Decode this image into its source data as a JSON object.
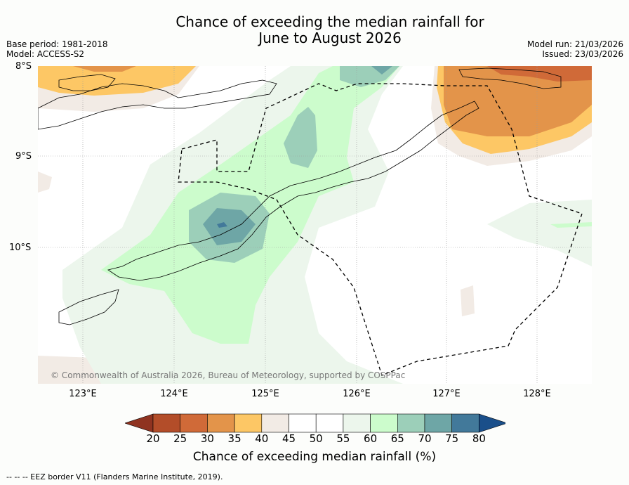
{
  "title": {
    "line1": "Chance of exceeding the median rainfall for",
    "line2": "June to August 2026"
  },
  "meta": {
    "base_period": "Base period: 1981-2018",
    "model": "Model: ACCESS-S2",
    "model_run": "Model run: 21/03/2026",
    "issued": "Issued: 23/03/2026"
  },
  "map": {
    "lat_labels": [
      "8°S",
      "9°S",
      "10°S"
    ],
    "lon_labels": [
      "123°E",
      "124°E",
      "125°E",
      "126°E",
      "127°E",
      "128°E"
    ],
    "copyright": "© Commonwealth of Australia 2026, Bureau of Meteorology, supported by COSPPac"
  },
  "colorbar": {
    "ticks": [
      "20",
      "25",
      "30",
      "35",
      "40",
      "45",
      "50",
      "55",
      "60",
      "65",
      "70",
      "75",
      "80"
    ],
    "colors": [
      "#b34d29",
      "#d06a38",
      "#e3944a",
      "#fdc765",
      "#f2ebe5",
      "#ffffff",
      "#ffffff",
      "#ecf6ec",
      "#ccfccc",
      "#9ccfb9",
      "#6ea6a6",
      "#42799a",
      "#1a4f8a"
    ],
    "under_color": "#8f3320",
    "label": "Chance of exceeding median rainfall (%)"
  },
  "footer": "-- -- -- EEZ border V11 (Flanders Marine Institute, 2019)."
}
